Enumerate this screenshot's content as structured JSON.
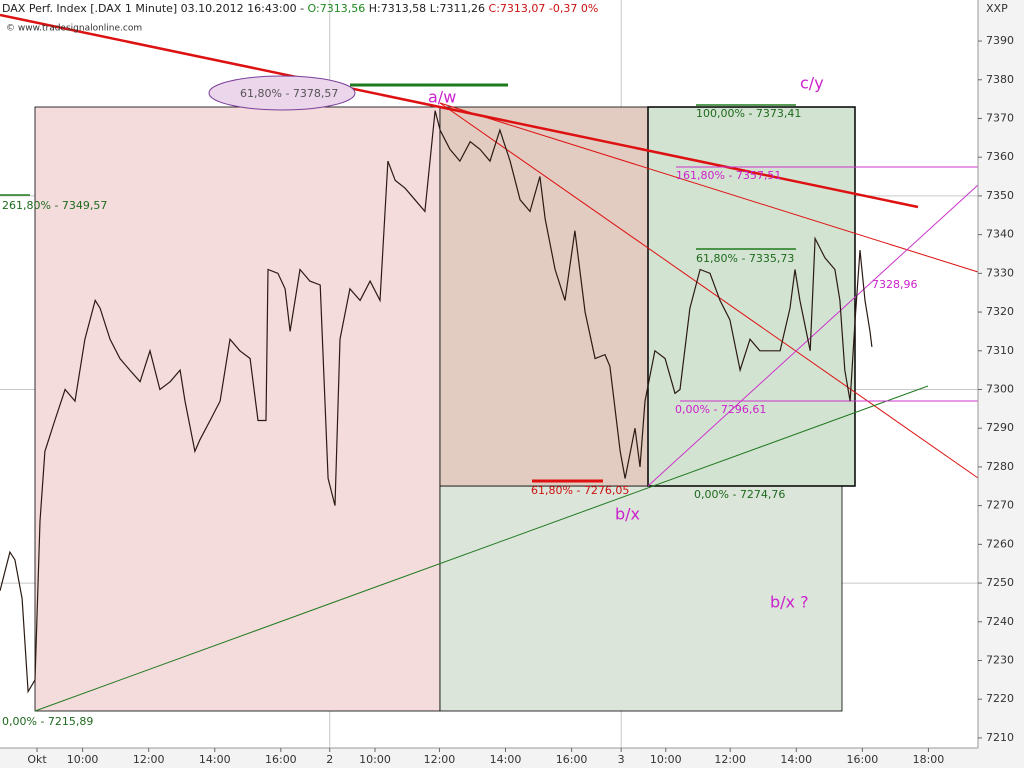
{
  "chart_data": {
    "type": "line",
    "header": {
      "instrument": "DAX Perf. Index [.DAX  1 Minute] 03.10.2012 16:43:00 -",
      "open": "O:7313,56",
      "high": "H:7313,58",
      "low": "L:7311,26",
      "close": "C:7313,07",
      "change": "-0,37 0%",
      "source": "© www.tradesignalonline.com",
      "axis_code": "XXP"
    },
    "annotations": {
      "fib_ellipse": "61,80% - 7378,57",
      "aw": "a/w",
      "cy": "c/y",
      "fib_100": "100,00% - 7373,41",
      "fib_161": "161,80% - 7357,51",
      "fib_261": "261,80% - 7349,57",
      "fib_61_upper": "61,80% - 7335,73",
      "level_7328": "7328,96",
      "fib_0_magenta": "0,00% - 7296,61",
      "fib_61_lower": "61,80% - 7276,05",
      "fib_0_green": "0,00% - 7274,76",
      "bx": "b/x",
      "bx_q": "b/x ?",
      "fib_0_bottom": "0,00% - 7215,89"
    },
    "color": "#2b1a14",
    "x": [
      0,
      0.3,
      0.45,
      0.67,
      0.85,
      1.06,
      1.21,
      1.36,
      1.66,
      1.97,
      2.27,
      2.57,
      2.88,
      3.03,
      3.33,
      3.63,
      3.93,
      4.24,
      4.54,
      4.84,
      5.15,
      5.45,
      5.6,
      5.9,
      6.05,
      6.36,
      6.66,
      6.96,
      7.26,
      7.57,
      7.81,
      8.05,
      8.11,
      8.41,
      8.63,
      8.78,
      9.08,
      9.38,
      9.69,
      9.93,
      10.14,
      10.29,
      10.59,
      10.9,
      11.2,
      11.5,
      11.74,
      11.96,
      12.26,
      12.56,
      12.86,
      13.17,
      13.32,
      13.62,
      13.92,
      14.23,
      14.53,
      14.83,
      15.13,
      15.44,
      15.74,
      16.04,
      16.34,
      16.5,
      16.8,
      17.1,
      17.4,
      17.71,
      18.01,
      18.31,
      18.46,
      18.77,
      18.92,
      19.22,
      19.37,
      19.52,
      19.82,
      20.13,
      20.43,
      20.58,
      20.88,
      21.19,
      21.49,
      21.79,
      22.09,
      22.4,
      22.7,
      23.0,
      23.31,
      23.61,
      23.91,
      24.06,
      24.21,
      24.52,
      24.67,
      24.97,
      25.27,
      25.42,
      25.57,
      25.73,
      25.88,
      26.03,
      26.18,
      26.33,
      26.39
    ],
    "values": [
      7248,
      7258,
      7256,
      7246,
      7222,
      7225,
      7266,
      7284,
      7292,
      7300,
      7297,
      7313,
      7323,
      7321,
      7313,
      7308,
      7305,
      7302,
      7310,
      7300,
      7302,
      7305,
      7297,
      7284,
      7287,
      7292,
      7297,
      7313,
      7310,
      7308,
      7292,
      7292,
      7331,
      7330,
      7326,
      7315,
      7331,
      7328,
      7327,
      7277,
      7270,
      7313,
      7326,
      7323,
      7328,
      7323,
      7359,
      7354,
      7352,
      7349,
      7346,
      7372,
      7367,
      7362,
      7359,
      7364,
      7362,
      7359,
      7367,
      7359,
      7349,
      7346,
      7355,
      7344,
      7331,
      7323,
      7341,
      7320,
      7308,
      7309,
      7306,
      7284,
      7277,
      7290,
      7280,
      7297,
      7310,
      7308,
      7299,
      7300,
      7321,
      7331,
      7330,
      7323,
      7318,
      7305,
      7313,
      7310,
      7310,
      7310,
      7321,
      7331,
      7323,
      7310,
      7339,
      7334,
      7331,
      7323,
      7305,
      7297,
      7318,
      7336,
      7323,
      7315,
      7311
    ],
    "xlim": [
      0,
      29.6
    ],
    "xticks": [
      {
        "value": 1.12,
        "label": "Okt"
      },
      {
        "value": 2.5,
        "label": "10:00"
      },
      {
        "value": 4.5,
        "label": "12:00"
      },
      {
        "value": 6.5,
        "label": "14:00"
      },
      {
        "value": 8.5,
        "label": "16:00"
      },
      {
        "value": 9.98,
        "label": "2"
      },
      {
        "value": 11.35,
        "label": "10:00"
      },
      {
        "value": 13.3,
        "label": "12:00"
      },
      {
        "value": 15.3,
        "label": "14:00"
      },
      {
        "value": 17.3,
        "label": "16:00"
      },
      {
        "value": 18.8,
        "label": "3"
      },
      {
        "value": 20.15,
        "label": "10:00"
      },
      {
        "value": 22.1,
        "label": "12:00"
      },
      {
        "value": 24.1,
        "label": "14:00"
      },
      {
        "value": 26.1,
        "label": "16:00"
      },
      {
        "value": 28.1,
        "label": "18:00"
      }
    ],
    "ylim": [
      7207.4,
      7400.6
    ],
    "yticks": [
      7210,
      7220,
      7230,
      7240,
      7250,
      7260,
      7270,
      7280,
      7290,
      7300,
      7310,
      7320,
      7330,
      7340,
      7350,
      7360,
      7370,
      7380,
      7390
    ],
    "grid": true
  }
}
